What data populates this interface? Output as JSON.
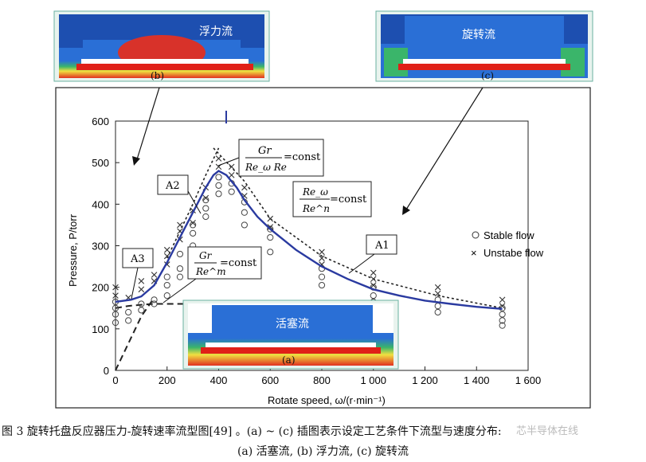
{
  "chart_data": {
    "type": "scatter",
    "xlabel": "Rotate speed, ω/(r·min⁻¹)",
    "ylabel": "Pressure, P/torr",
    "xlim": [
      0,
      1600
    ],
    "ylim": [
      0,
      600
    ],
    "xticks": [
      0,
      200,
      400,
      600,
      800,
      1000,
      1200,
      1400,
      1600
    ],
    "xtick_labels": [
      "0",
      "200",
      "400",
      "600",
      "800",
      "1 000",
      "1 200",
      "1 400",
      "1 600"
    ],
    "yticks": [
      0,
      100,
      200,
      300,
      400,
      500,
      600
    ],
    "legend": {
      "position": "right",
      "entries": [
        "Stable flow",
        "Unstabe flow"
      ]
    },
    "series": [
      {
        "name": "Stable flow",
        "marker": "circle",
        "points": [
          [
            0,
            115
          ],
          [
            0,
            135
          ],
          [
            0,
            150
          ],
          [
            0,
            165
          ],
          [
            50,
            120
          ],
          [
            50,
            140
          ],
          [
            100,
            145
          ],
          [
            100,
            160
          ],
          [
            150,
            160
          ],
          [
            150,
            170
          ],
          [
            200,
            180
          ],
          [
            200,
            205
          ],
          [
            200,
            225
          ],
          [
            250,
            225
          ],
          [
            250,
            245
          ],
          [
            250,
            280
          ],
          [
            300,
            300
          ],
          [
            300,
            330
          ],
          [
            300,
            350
          ],
          [
            350,
            370
          ],
          [
            350,
            390
          ],
          [
            350,
            410
          ],
          [
            400,
            425
          ],
          [
            400,
            445
          ],
          [
            400,
            465
          ],
          [
            450,
            430
          ],
          [
            450,
            450
          ],
          [
            500,
            350
          ],
          [
            500,
            380
          ],
          [
            500,
            405
          ],
          [
            600,
            285
          ],
          [
            600,
            320
          ],
          [
            600,
            340
          ],
          [
            800,
            205
          ],
          [
            800,
            225
          ],
          [
            800,
            245
          ],
          [
            1000,
            165
          ],
          [
            1000,
            180
          ],
          [
            1000,
            200
          ],
          [
            1250,
            140
          ],
          [
            1250,
            155
          ],
          [
            1250,
            170
          ],
          [
            1500,
            108
          ],
          [
            1500,
            120
          ],
          [
            1500,
            135
          ],
          [
            1500,
            150
          ]
        ]
      },
      {
        "name": "Unstabe flow",
        "marker": "x",
        "points": [
          [
            0,
            180
          ],
          [
            0,
            200
          ],
          [
            50,
            175
          ],
          [
            100,
            195
          ],
          [
            100,
            215
          ],
          [
            150,
            215
          ],
          [
            150,
            230
          ],
          [
            200,
            255
          ],
          [
            200,
            275
          ],
          [
            200,
            290
          ],
          [
            250,
            315
          ],
          [
            250,
            335
          ],
          [
            250,
            350
          ],
          [
            300,
            355
          ],
          [
            300,
            385
          ],
          [
            350,
            415
          ],
          [
            350,
            440
          ],
          [
            400,
            490
          ],
          [
            400,
            510
          ],
          [
            450,
            470
          ],
          [
            450,
            490
          ],
          [
            500,
            420
          ],
          [
            500,
            440
          ],
          [
            600,
            345
          ],
          [
            600,
            365
          ],
          [
            800,
            255
          ],
          [
            800,
            270
          ],
          [
            800,
            285
          ],
          [
            1000,
            205
          ],
          [
            1000,
            220
          ],
          [
            1000,
            235
          ],
          [
            1250,
            185
          ],
          [
            1250,
            200
          ],
          [
            1500,
            155
          ],
          [
            1500,
            170
          ]
        ]
      }
    ],
    "fit_curve": [
      [
        0,
        165
      ],
      [
        60,
        170
      ],
      [
        100,
        178
      ],
      [
        150,
        205
      ],
      [
        200,
        260
      ],
      [
        250,
        320
      ],
      [
        300,
        380
      ],
      [
        350,
        440
      ],
      [
        380,
        470
      ],
      [
        400,
        480
      ],
      [
        430,
        470
      ],
      [
        470,
        440
      ],
      [
        500,
        410
      ],
      [
        550,
        370
      ],
      [
        600,
        340
      ],
      [
        700,
        290
      ],
      [
        800,
        250
      ],
      [
        900,
        220
      ],
      [
        1000,
        195
      ],
      [
        1100,
        180
      ],
      [
        1200,
        168
      ],
      [
        1300,
        160
      ],
      [
        1400,
        153
      ],
      [
        1500,
        148
      ]
    ],
    "dashed_lines": {
      "A1": [
        [
          380,
          535
        ],
        [
          500,
          455
        ],
        [
          600,
          365
        ],
        [
          800,
          275
        ],
        [
          1000,
          220
        ],
        [
          1250,
          180
        ],
        [
          1500,
          150
        ]
      ],
      "A2": [
        [
          200,
          270
        ],
        [
          300,
          400
        ],
        [
          350,
          470
        ],
        [
          400,
          535
        ]
      ],
      "A3": [
        [
          0,
          150
        ],
        [
          50,
          155
        ],
        [
          100,
          158
        ],
        [
          150,
          160
        ],
        [
          200,
          160
        ],
        [
          300,
          160
        ]
      ],
      "A3b": [
        [
          0,
          0
        ],
        [
          100,
          130
        ],
        [
          150,
          175
        ]
      ]
    },
    "annotations": [
      {
        "label": "A1"
      },
      {
        "label": "A2"
      },
      {
        "label": "A3"
      },
      {
        "num": "Gr",
        "den": "Re_ω Re",
        "rhs": "=const"
      },
      {
        "num": "Re_ω",
        "den": "Re^n",
        "rhs": "=const"
      },
      {
        "num": "Gr",
        "den": "Re^m",
        "rhs": "=const"
      }
    ],
    "insets": [
      {
        "id": "b",
        "text": "浮力流",
        "label": "(b)"
      },
      {
        "id": "c",
        "text": "旋转流",
        "label": "(c)"
      },
      {
        "id": "a",
        "text": "活塞流",
        "label": "(a)"
      }
    ]
  },
  "caption": {
    "line1": "图 3   旋转托盘反应器压力-旋转速率流型图[49] 。(a) ~ (c) 插图表示设定工艺条件下流型与速度分布:",
    "line2": "(a) 活塞流, (b) 浮力流, (c) 旋转流"
  },
  "watermark": "芯半导体在线"
}
